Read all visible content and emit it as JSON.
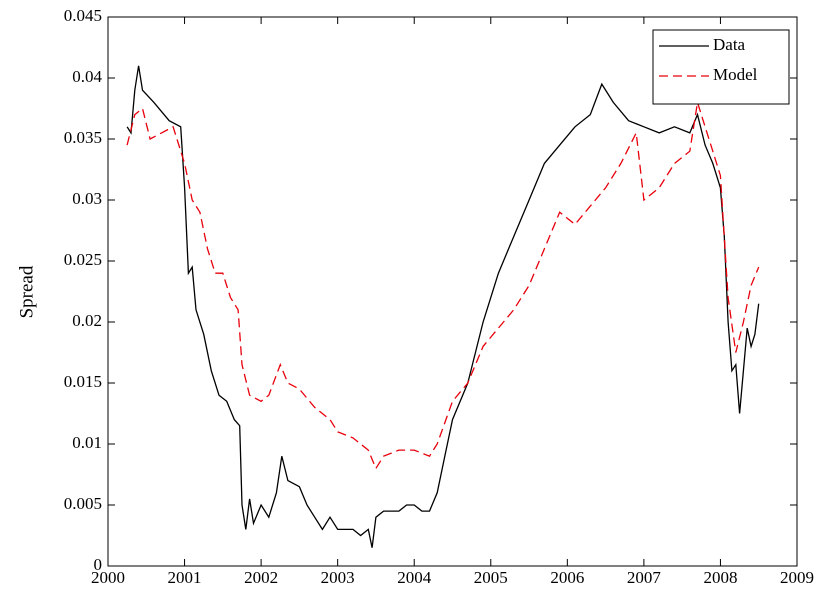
{
  "chart_data": {
    "type": "line",
    "ylabel": "Spread",
    "xlim": [
      2000,
      2009
    ],
    "xticks": [
      2000,
      2001,
      2002,
      2003,
      2004,
      2005,
      2006,
      2007,
      2008,
      2009
    ],
    "ylim": [
      0,
      0.045
    ],
    "yticks": [
      0,
      0.005,
      0.01,
      0.015,
      0.02,
      0.025,
      0.03,
      0.035,
      0.04,
      0.045
    ],
    "legend": "upper right",
    "series": [
      {
        "name": "Data",
        "color": "#000000",
        "linestyle": "solid",
        "x": [
          2000.25,
          2000.3,
          2000.35,
          2000.4,
          2000.45,
          2000.6,
          2000.8,
          2000.95,
          2001.0,
          2001.05,
          2001.1,
          2001.15,
          2001.25,
          2001.35,
          2001.45,
          2001.55,
          2001.65,
          2001.72,
          2001.75,
          2001.8,
          2001.85,
          2001.9,
          2002.0,
          2002.1,
          2002.2,
          2002.27,
          2002.35,
          2002.5,
          2002.6,
          2002.7,
          2002.8,
          2002.9,
          2003.0,
          2003.2,
          2003.3,
          2003.4,
          2003.45,
          2003.5,
          2003.6,
          2003.8,
          2003.9,
          2004.0,
          2004.1,
          2004.2,
          2004.3,
          2004.4,
          2004.5,
          2004.7,
          2004.9,
          2005.1,
          2005.3,
          2005.5,
          2005.7,
          2005.9,
          2006.1,
          2006.3,
          2006.45,
          2006.6,
          2006.8,
          2007.0,
          2007.2,
          2007.4,
          2007.6,
          2007.7,
          2007.8,
          2007.9,
          2008.0,
          2008.05,
          2008.1,
          2008.15,
          2008.2,
          2008.25,
          2008.3,
          2008.35,
          2008.4,
          2008.45,
          2008.5
        ],
        "values": [
          0.036,
          0.0355,
          0.039,
          0.041,
          0.039,
          0.038,
          0.0365,
          0.036,
          0.031,
          0.024,
          0.0245,
          0.021,
          0.019,
          0.016,
          0.014,
          0.0135,
          0.012,
          0.0115,
          0.005,
          0.003,
          0.0055,
          0.0035,
          0.005,
          0.004,
          0.006,
          0.009,
          0.007,
          0.0065,
          0.005,
          0.004,
          0.003,
          0.004,
          0.003,
          0.003,
          0.0025,
          0.003,
          0.0015,
          0.004,
          0.0045,
          0.0045,
          0.005,
          0.005,
          0.0045,
          0.0045,
          0.006,
          0.009,
          0.012,
          0.015,
          0.02,
          0.024,
          0.027,
          0.03,
          0.033,
          0.0345,
          0.036,
          0.037,
          0.0395,
          0.038,
          0.0365,
          0.036,
          0.0355,
          0.036,
          0.0355,
          0.037,
          0.0345,
          0.033,
          0.031,
          0.027,
          0.02,
          0.016,
          0.0165,
          0.0125,
          0.016,
          0.0195,
          0.018,
          0.019,
          0.0215
        ]
      },
      {
        "name": "Model",
        "color": "#e8000b",
        "linestyle": "dashed",
        "x": [
          2000.25,
          2000.35,
          2000.45,
          2000.55,
          2000.7,
          2000.85,
          2001.0,
          2001.1,
          2001.2,
          2001.3,
          2001.4,
          2001.5,
          2001.6,
          2001.7,
          2001.75,
          2001.85,
          2002.0,
          2002.1,
          2002.25,
          2002.35,
          2002.5,
          2002.7,
          2002.9,
          2003.0,
          2003.2,
          2003.4,
          2003.5,
          2003.6,
          2003.8,
          2004.0,
          2004.2,
          2004.3,
          2004.5,
          2004.7,
          2004.9,
          2005.1,
          2005.3,
          2005.5,
          2005.7,
          2005.9,
          2006.1,
          2006.3,
          2006.5,
          2006.7,
          2006.9,
          2007.0,
          2007.2,
          2007.4,
          2007.6,
          2007.7,
          2007.8,
          2007.9,
          2008.0,
          2008.1,
          2008.2,
          2008.3,
          2008.4,
          2008.5
        ],
        "values": [
          0.0345,
          0.037,
          0.0375,
          0.035,
          0.0355,
          0.036,
          0.033,
          0.03,
          0.029,
          0.026,
          0.024,
          0.024,
          0.022,
          0.021,
          0.0165,
          0.014,
          0.0135,
          0.014,
          0.0165,
          0.015,
          0.0145,
          0.013,
          0.012,
          0.011,
          0.0105,
          0.0095,
          0.008,
          0.009,
          0.0095,
          0.0095,
          0.009,
          0.01,
          0.0135,
          0.015,
          0.018,
          0.0195,
          0.021,
          0.023,
          0.026,
          0.029,
          0.028,
          0.0295,
          0.031,
          0.033,
          0.0355,
          0.03,
          0.031,
          0.033,
          0.034,
          0.038,
          0.036,
          0.034,
          0.032,
          0.022,
          0.0175,
          0.02,
          0.023,
          0.0245
        ]
      }
    ]
  }
}
